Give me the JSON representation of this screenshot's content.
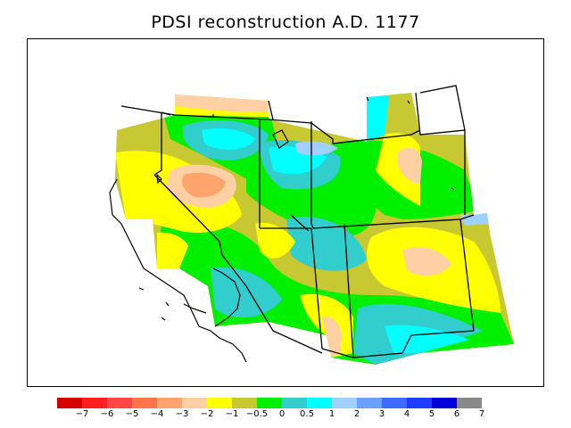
{
  "title": "PDSI reconstruction A.D. 1177",
  "colorbar": {
    "colors": [
      "#d40000",
      "#ff1e1e",
      "#ff4646",
      "#ff7448",
      "#ffa46c",
      "#ffd0a4",
      "#ffff00",
      "#c8c832",
      "#00f000",
      "#32cdcd",
      "#00ffff",
      "#a0d0ff",
      "#6aa0ff",
      "#3c6cff",
      "#1e3cff",
      "#0000d8",
      "#888888"
    ],
    "labels": [
      "−7",
      "−6",
      "−5",
      "−4",
      "−3",
      "−2",
      "−1",
      "−0.5",
      "0",
      "0.5",
      "1",
      "2",
      "3",
      "4",
      "5",
      "6",
      "7"
    ]
  },
  "palette": {
    "green": "#00f000",
    "teal": "#32cdcd",
    "cyan": "#00ffff",
    "lightblue": "#a0d0ff",
    "yellow": "#ffff00",
    "olive": "#c8c832",
    "peach": "#ffd0a4",
    "orange": "#ffa46c",
    "darkorange": "#ff7448"
  }
}
